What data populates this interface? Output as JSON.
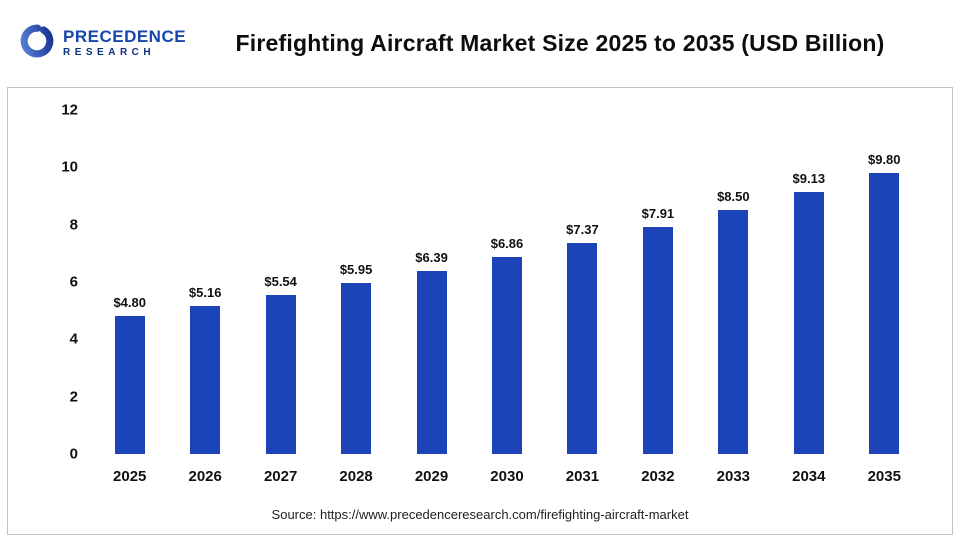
{
  "header": {
    "logo": {
      "line1": "PRECEDENCE",
      "line2": "RESEARCH"
    },
    "title": "Firefighting Aircraft Market Size 2025 to 2035 (USD Billion)"
  },
  "chart_data": {
    "type": "bar",
    "title": "Firefighting Aircraft Market Size 2025 to 2035 (USD Billion)",
    "categories": [
      "2025",
      "2026",
      "2027",
      "2028",
      "2029",
      "2030",
      "2031",
      "2032",
      "2033",
      "2034",
      "2035"
    ],
    "values": [
      4.8,
      5.16,
      5.54,
      5.95,
      6.39,
      6.86,
      7.37,
      7.91,
      8.5,
      9.13,
      9.8
    ],
    "value_labels": [
      "$4.80",
      "$5.16",
      "$5.54",
      "$5.95",
      "$6.39",
      "$6.86",
      "$7.37",
      "$7.91",
      "$8.50",
      "$9.13",
      "$9.80"
    ],
    "xlabel": "",
    "ylabel": "",
    "ylim": [
      0,
      12
    ],
    "yticks": [
      0,
      2,
      4,
      6,
      8,
      10,
      12
    ],
    "grid": false,
    "legend": false,
    "bar_color": "#1c43b8"
  },
  "footer": {
    "source": "Source: https://www.precedenceresearch.com/firefighting-aircraft-market"
  },
  "colors": {
    "logo_primary": "#1746ad",
    "logo_secondary": "#0e2f7a",
    "panel_border": "#c4c4c4"
  }
}
